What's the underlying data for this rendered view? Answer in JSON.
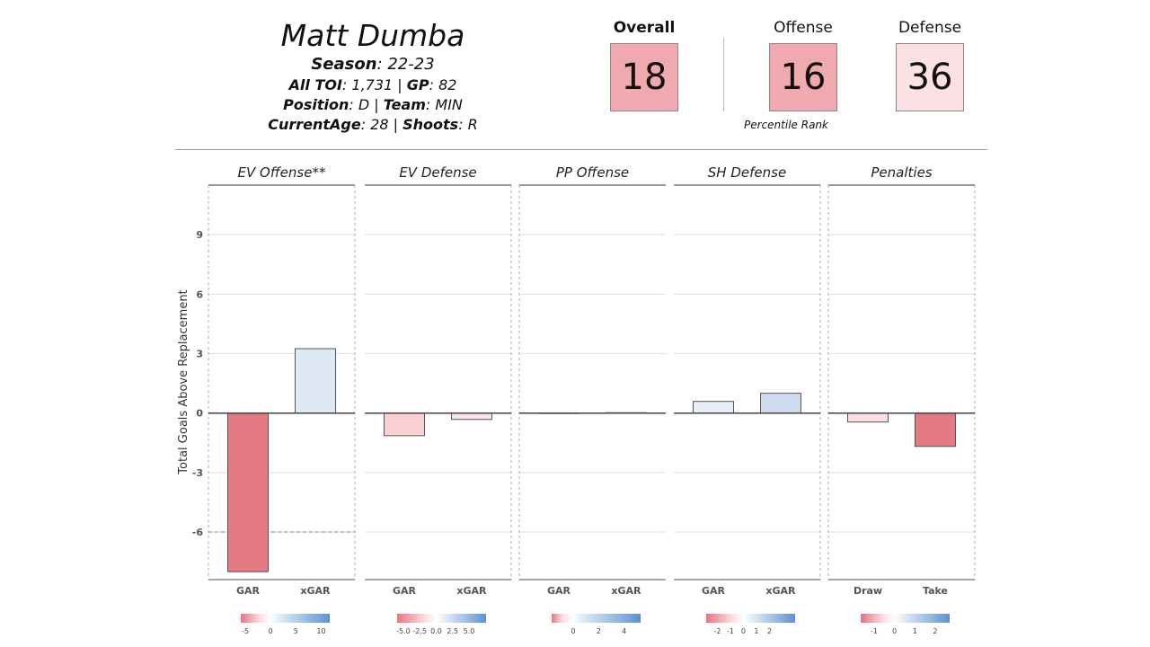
{
  "player": {
    "name": "Matt Dumba",
    "season_label": "Season",
    "season": ": 22-23",
    "toi_label": "All TOI",
    "toi": ": 1,731 | ",
    "gp_label": "GP",
    "gp": ": 82",
    "position_label": "Position",
    "position": ": D | ",
    "team_label": "Team",
    "team": ": MIN",
    "age_label": "CurrentAge",
    "age": ": 28 | ",
    "shoots_label": "Shoots",
    "shoots": ": R"
  },
  "ranks": {
    "overall_label": "Overall",
    "overall": "18",
    "offense_label": "Offense",
    "offense": "16",
    "defense_label": "Defense",
    "defense": "36",
    "caption": "Percentile Rank",
    "colors": {
      "overall": "#f0a9ae",
      "offense": "#f0a9ae",
      "defense": "#fbe1e3"
    }
  },
  "chart_data": {
    "type": "bar",
    "ylabel": "Total Goals Above Replacement",
    "ylim": [
      -8.4,
      11.5
    ],
    "yticks": [
      9,
      6,
      3,
      0,
      -3,
      -6
    ],
    "grid": true,
    "reference_line": {
      "panel": "EV Offense**",
      "y": -6,
      "style": "dashed"
    },
    "panels": [
      {
        "title": "EV Offense**",
        "categories": [
          "GAR",
          "xGAR"
        ],
        "values": [
          -8.0,
          3.25
        ],
        "colors": [
          "#e67a84",
          "#dfe8f5"
        ],
        "legend": {
          "min": -5.9,
          "max": 11.7,
          "ticks": [
            "-5",
            "0",
            "5",
            "10"
          ],
          "tick_values": [
            -5,
            0,
            5,
            10
          ]
        }
      },
      {
        "title": "EV Defense",
        "categories": [
          "GAR",
          "xGAR"
        ],
        "values": [
          -1.14,
          -0.32
        ],
        "colors": [
          "#f8d0d3",
          "#fbe2e4"
        ],
        "legend": {
          "min": -5.95,
          "max": 7.6,
          "ticks": [
            "-5.0",
            "-2.5",
            "0.0",
            "2.5",
            "5.0"
          ],
          "tick_values": [
            -5,
            -2.5,
            0,
            2.5,
            5
          ]
        }
      },
      {
        "title": "PP Offense",
        "categories": [
          "GAR",
          "xGAR"
        ],
        "values": [
          0.0,
          0.02
        ],
        "colors": [
          "#fdf3f4",
          "#f3f6fb"
        ],
        "legend": {
          "min": -1.7,
          "max": 5.3,
          "ticks": [
            "0",
            "2",
            "4"
          ],
          "tick_values": [
            0,
            2,
            4
          ]
        }
      },
      {
        "title": "SH Defense",
        "categories": [
          "GAR",
          "xGAR"
        ],
        "values": [
          0.59,
          1.0
        ],
        "colors": [
          "#e9eff8",
          "#cddcf1"
        ],
        "legend": {
          "min": -2.86,
          "max": 3.97,
          "ticks": [
            "-2",
            "-1",
            "0",
            "1",
            "2"
          ],
          "tick_values": [
            -2,
            -1,
            0,
            1,
            2
          ]
        }
      },
      {
        "title": "Penalties",
        "categories": [
          "Draw",
          "Take"
        ],
        "values": [
          -0.45,
          -1.68
        ],
        "colors": [
          "#fbdfe1",
          "#e67a84"
        ],
        "legend": {
          "min": -1.66,
          "max": 2.71,
          "ticks": [
            "-1",
            "0",
            "1",
            "2"
          ],
          "tick_values": [
            -1,
            0,
            1,
            2
          ]
        }
      }
    ]
  }
}
